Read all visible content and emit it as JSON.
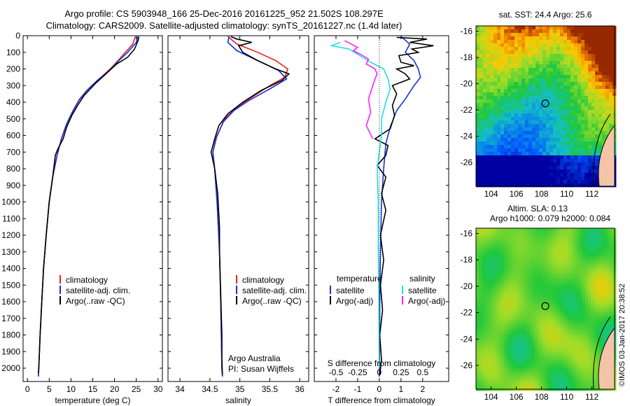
{
  "header": {
    "title_line1": "Argo profile: CS 5903948_166 25-Dec-2016 20161225_952 21.502S 108.297E",
    "title_line2": "Climatology: CARS2009. Satellite-adjusted climatology: synTS_20161227.nc (1.4d later)"
  },
  "stamp": "©IMOS 03-Jan-2017 20:38:52",
  "colors": {
    "climatology": "#e8231a",
    "satellite": "#1530d8",
    "argo": "#000000",
    "salinity_sat": "#20e0e0",
    "salinity_argo": "#ff20ff"
  },
  "chart_data": [
    {
      "type": "line",
      "panel": "temperature",
      "xlabel": "temperature (deg C)",
      "ylim": [
        0,
        2080
      ],
      "xlim": [
        -1,
        31
      ],
      "y_reversed": true,
      "xticks": [
        0,
        5,
        10,
        15,
        20,
        25,
        30
      ],
      "yticks": [
        0,
        100,
        200,
        300,
        400,
        500,
        600,
        700,
        800,
        900,
        1000,
        1100,
        1200,
        1300,
        1400,
        1500,
        1600,
        1700,
        1800,
        1900,
        2000
      ],
      "legend": [
        "climatology",
        "satellite-adj. clim.",
        "Argo(..raw -QC)"
      ],
      "series": [
        {
          "name": "climatology",
          "color_key": "climatology",
          "points": [
            [
              24.8,
              5
            ],
            [
              24.2,
              50
            ],
            [
              22.5,
              100
            ],
            [
              20.8,
              150
            ],
            [
              19.0,
              200
            ],
            [
              16.5,
              260
            ],
            [
              14.0,
              320
            ],
            [
              12.0,
              380
            ],
            [
              10.5,
              450
            ],
            [
              9.0,
              530
            ],
            [
              7.8,
              620
            ],
            [
              6.8,
              720
            ],
            [
              5.8,
              850
            ],
            [
              5.0,
              1000
            ],
            [
              4.3,
              1200
            ],
            [
              3.7,
              1400
            ],
            [
              3.3,
              1600
            ],
            [
              2.9,
              1800
            ],
            [
              2.6,
              2000
            ],
            [
              2.5,
              2050
            ]
          ]
        },
        {
          "name": "satellite-adj. clim.",
          "color_key": "satellite",
          "points": [
            [
              25.3,
              5
            ],
            [
              25.0,
              40
            ],
            [
              23.0,
              100
            ],
            [
              21.0,
              150
            ],
            [
              18.8,
              210
            ],
            [
              16.0,
              270
            ],
            [
              13.6,
              330
            ],
            [
              11.8,
              390
            ],
            [
              10.3,
              460
            ],
            [
              9.0,
              530
            ],
            [
              7.8,
              620
            ],
            [
              6.8,
              720
            ],
            [
              5.8,
              850
            ],
            [
              5.0,
              1000
            ],
            [
              4.3,
              1200
            ],
            [
              3.7,
              1400
            ],
            [
              3.3,
              1600
            ],
            [
              2.9,
              1800
            ],
            [
              2.6,
              2000
            ],
            [
              2.5,
              2050
            ]
          ]
        },
        {
          "name": "Argo(..raw -QC)",
          "color_key": "argo",
          "points": [
            [
              25.6,
              5
            ],
            [
              25.4,
              30
            ],
            [
              24.6,
              80
            ],
            [
              23.0,
              130
            ],
            [
              20.5,
              170
            ],
            [
              18.0,
              230
            ],
            [
              15.5,
              290
            ],
            [
              13.0,
              360
            ],
            [
              11.5,
              420
            ],
            [
              10.2,
              480
            ],
            [
              9.0,
              550
            ],
            [
              8.2,
              620
            ],
            [
              7.0,
              680
            ],
            [
              6.4,
              720
            ],
            [
              5.8,
              850
            ],
            [
              5.0,
              1000
            ],
            [
              4.3,
              1200
            ],
            [
              3.7,
              1400
            ],
            [
              3.3,
              1600
            ],
            [
              2.9,
              1800
            ],
            [
              2.6,
              2000
            ],
            [
              2.5,
              2030
            ]
          ]
        }
      ]
    },
    {
      "type": "line",
      "panel": "salinity",
      "xlabel": "salinity",
      "ylim": [
        0,
        2080
      ],
      "xlim": [
        33.8,
        36.15
      ],
      "y_reversed": true,
      "xticks": [
        34,
        34.5,
        35,
        35.5,
        36
      ],
      "legend": [
        "climatology",
        "satellite-adj. clim.",
        "Argo(..raw -QC)"
      ],
      "annotation": [
        "Argo Australia",
        "PI: Susan Wijffels"
      ],
      "series": [
        {
          "name": "climatology",
          "color_key": "climatology",
          "points": [
            [
              34.8,
              5
            ],
            [
              34.95,
              50
            ],
            [
              35.3,
              100
            ],
            [
              35.6,
              150
            ],
            [
              35.8,
              200
            ],
            [
              35.75,
              250
            ],
            [
              35.5,
              300
            ],
            [
              35.2,
              370
            ],
            [
              34.95,
              430
            ],
            [
              34.75,
              500
            ],
            [
              34.62,
              600
            ],
            [
              34.55,
              700
            ],
            [
              34.58,
              800
            ],
            [
              34.62,
              1000
            ],
            [
              34.66,
              1300
            ],
            [
              34.68,
              1600
            ],
            [
              34.7,
              2000
            ],
            [
              34.71,
              2050
            ]
          ]
        },
        {
          "name": "satellite-adj. clim.",
          "color_key": "satellite",
          "points": [
            [
              34.82,
              5
            ],
            [
              34.8,
              40
            ],
            [
              34.95,
              90
            ],
            [
              35.3,
              150
            ],
            [
              35.65,
              210
            ],
            [
              35.78,
              260
            ],
            [
              35.5,
              320
            ],
            [
              35.15,
              390
            ],
            [
              34.9,
              450
            ],
            [
              34.72,
              520
            ],
            [
              34.6,
              620
            ],
            [
              34.55,
              700
            ],
            [
              34.58,
              800
            ],
            [
              34.62,
              1000
            ],
            [
              34.66,
              1300
            ],
            [
              34.68,
              1600
            ],
            [
              34.7,
              2000
            ],
            [
              34.71,
              2050
            ]
          ]
        },
        {
          "name": "Argo(..raw -QC)",
          "color_key": "argo",
          "points": [
            [
              34.85,
              5
            ],
            [
              34.95,
              20
            ],
            [
              35.2,
              40
            ],
            [
              34.98,
              60
            ],
            [
              35.05,
              100
            ],
            [
              35.3,
              150
            ],
            [
              35.6,
              200
            ],
            [
              35.82,
              230
            ],
            [
              35.7,
              270
            ],
            [
              35.35,
              330
            ],
            [
              35.05,
              400
            ],
            [
              34.8,
              470
            ],
            [
              34.65,
              540
            ],
            [
              34.58,
              620
            ],
            [
              34.52,
              700
            ],
            [
              34.58,
              800
            ],
            [
              34.63,
              950
            ],
            [
              34.66,
              1150
            ],
            [
              34.66,
              1300
            ],
            [
              34.68,
              1550
            ],
            [
              34.7,
              1800
            ],
            [
              34.7,
              1950
            ],
            [
              34.71,
              2040
            ]
          ]
        }
      ]
    },
    {
      "type": "line",
      "panel": "difference",
      "xlabel": "T difference from climatology",
      "top_label": "S difference from climatology",
      "ylim": [
        0,
        2080
      ],
      "xlim": [
        -3,
        3.2
      ],
      "y_reversed": true,
      "xticks_T": [
        -2,
        -1,
        0,
        1,
        2
      ],
      "xticks_S": [
        "-0.5",
        "-0.25",
        "0",
        "0.25",
        "0.5"
      ],
      "xticks_S_pos": [
        -2,
        -1,
        0,
        1,
        2
      ],
      "legend_temperature": {
        "title": "temperature",
        "items": [
          "satellite",
          "Argo(-adj)"
        ]
      },
      "legend_salinity": {
        "title": "salinity",
        "items": [
          "satellite",
          "Argo(-adj)"
        ]
      },
      "series": [
        {
          "name": "temperature satellite",
          "color_key": "satellite",
          "points": [
            [
              1.0,
              5
            ],
            [
              1.4,
              50
            ],
            [
              1.2,
              100
            ],
            [
              1.6,
              150
            ],
            [
              1.8,
              200
            ],
            [
              1.9,
              250
            ],
            [
              1.6,
              300
            ],
            [
              1.2,
              380
            ],
            [
              0.8,
              450
            ],
            [
              0.5,
              550
            ],
            [
              0.3,
              650
            ],
            [
              0.2,
              800
            ],
            [
              0.1,
              1000
            ],
            [
              0.05,
              1300
            ],
            [
              0.02,
              1600
            ],
            [
              0.01,
              2000
            ],
            [
              0.0,
              2050
            ]
          ]
        },
        {
          "name": "temperature Argo(-adj)",
          "color_key": "argo",
          "points": [
            [
              0.8,
              10
            ],
            [
              2.2,
              20
            ],
            [
              1.4,
              40
            ],
            [
              2.5,
              60
            ],
            [
              1.5,
              80
            ],
            [
              1.8,
              100
            ],
            [
              0.9,
              120
            ],
            [
              1.0,
              160
            ],
            [
              1.6,
              180
            ],
            [
              0.8,
              200
            ],
            [
              1.2,
              230
            ],
            [
              1.4,
              260
            ],
            [
              0.6,
              300
            ],
            [
              0.8,
              350
            ],
            [
              0.6,
              420
            ],
            [
              0.7,
              480
            ],
            [
              0.5,
              560
            ],
            [
              -0.2,
              620
            ],
            [
              0.4,
              660
            ],
            [
              0.3,
              720
            ],
            [
              -0.1,
              780
            ],
            [
              0.3,
              850
            ],
            [
              0.1,
              950
            ],
            [
              0.3,
              1050
            ],
            [
              0.05,
              1200
            ],
            [
              0.2,
              1350
            ],
            [
              0.05,
              1500
            ],
            [
              0.15,
              1650
            ],
            [
              0.02,
              1800
            ],
            [
              0.1,
              1950
            ],
            [
              0.02,
              2040
            ]
          ]
        },
        {
          "name": "salinity satellite",
          "color_key": "salinity_sat",
          "points": [
            [
              -1.8,
              40
            ],
            [
              -2.2,
              60
            ],
            [
              -1.4,
              80
            ],
            [
              -0.9,
              120
            ],
            [
              -0.4,
              160
            ],
            [
              0.2,
              200
            ],
            [
              0.4,
              260
            ],
            [
              0.5,
              320
            ],
            [
              0.3,
              400
            ],
            [
              0.1,
              500
            ],
            [
              0.1,
              600
            ],
            [
              0.0,
              700
            ],
            [
              -0.1,
              800
            ],
            [
              -0.05,
              1000
            ],
            [
              -0.05,
              1300
            ],
            [
              -0.02,
              1600
            ],
            [
              0.0,
              2000
            ]
          ]
        },
        {
          "name": "salinity Argo(-adj)",
          "color_key": "salinity_argo",
          "points": [
            [
              -1.6,
              30
            ],
            [
              -1.3,
              50
            ],
            [
              -1.0,
              70
            ],
            [
              -1.2,
              90
            ],
            [
              -0.9,
              110
            ],
            [
              -0.5,
              140
            ],
            [
              -0.6,
              170
            ],
            [
              -0.2,
              200
            ],
            [
              -0.1,
              230
            ],
            [
              -0.2,
              260
            ],
            [
              -0.3,
              300
            ],
            [
              -0.5,
              380
            ],
            [
              -0.4,
              460
            ],
            [
              -0.6,
              540
            ],
            [
              -0.3,
              620
            ]
          ]
        }
      ]
    }
  ],
  "maps": {
    "top": {
      "title": "sat. SST: 24.4  Argo: 25.6",
      "yticks": [
        -16,
        -18,
        -20,
        -22,
        -24,
        -26
      ],
      "xticks": [
        104,
        106,
        108,
        110,
        112
      ],
      "marker": [
        108.3,
        -21.5
      ]
    },
    "bottom": {
      "title_line1": "Altim. SLA: 0.13",
      "title_line2": "Argo h1000: 0.079 h2000: 0.084",
      "yticks": [
        -16,
        -18,
        -20,
        -22,
        -24,
        -26
      ],
      "xticks": [
        104,
        106,
        108,
        110,
        112
      ],
      "marker": [
        108.3,
        -21.5
      ]
    }
  }
}
